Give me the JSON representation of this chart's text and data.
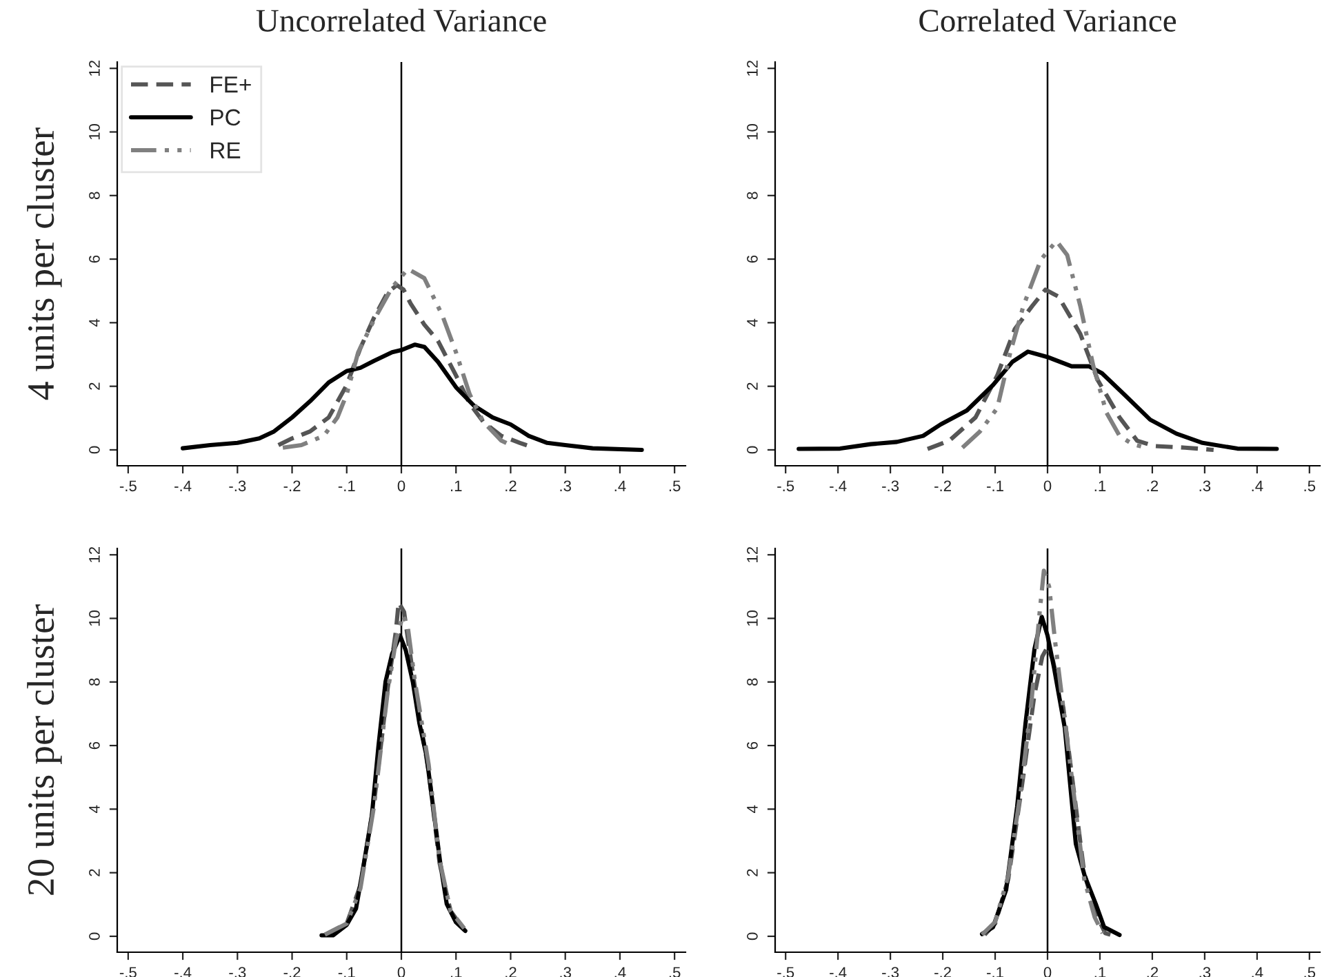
{
  "chart_data": [
    {
      "type": "line",
      "title": "Uncorrelated Variance",
      "ylabel": "4 units per cluster",
      "legend": "top left",
      "xlim": [
        -0.52,
        0.52
      ],
      "ylim": [
        -0.5,
        12.2
      ],
      "xticks": [
        {
          "value": -0.5,
          "label": "-.5"
        },
        {
          "value": -0.4,
          "label": "-.4"
        },
        {
          "value": -0.3,
          "label": "-.3"
        },
        {
          "value": -0.2,
          "label": "-.2"
        },
        {
          "value": -0.1,
          "label": "-.1"
        },
        0,
        {
          "value": 0.1,
          "label": ".1"
        },
        {
          "value": 0.2,
          "label": ".2"
        },
        {
          "value": 0.3,
          "label": ".3"
        },
        {
          "value": 0.4,
          "label": ".4"
        },
        {
          "value": 0.5,
          "label": ".5"
        }
      ],
      "yticks": [
        0,
        2,
        4,
        6,
        8,
        10,
        12
      ],
      "ref_lines": [
        {
          "axis": "x",
          "value": 0,
          "color": "#000000"
        }
      ],
      "series": [
        {
          "name": "FE+",
          "color": "#555555",
          "line_style": "dashed",
          "x": [
            -0.225,
            -0.2,
            -0.167,
            -0.133,
            -0.1,
            -0.075,
            -0.05,
            -0.025,
            -0.008,
            0.004,
            0.017,
            0.042,
            0.067,
            0.1,
            0.125,
            0.15,
            0.183,
            0.217,
            0.242
          ],
          "values": [
            0.15,
            0.36,
            0.58,
            1.02,
            2.04,
            3.2,
            4.16,
            4.96,
            5.18,
            5.04,
            4.6,
            3.94,
            3.43,
            2.34,
            1.46,
            0.88,
            0.44,
            0.22,
            0.07
          ]
        },
        {
          "name": "PC",
          "color": "#000000",
          "line_style": "solid",
          "x": [
            -0.4,
            -0.35,
            -0.3,
            -0.26,
            -0.233,
            -0.2,
            -0.167,
            -0.133,
            -0.1,
            -0.075,
            -0.05,
            -0.017,
            0,
            0.025,
            0.042,
            0.067,
            0.1,
            0.133,
            0.167,
            0.2,
            0.233,
            0.267,
            0.3,
            0.35,
            0.44
          ],
          "values": [
            0.05,
            0.15,
            0.22,
            0.36,
            0.58,
            1.02,
            1.53,
            2.12,
            2.48,
            2.58,
            2.8,
            3.07,
            3.14,
            3.31,
            3.24,
            2.77,
            1.97,
            1.39,
            1.02,
            0.8,
            0.44,
            0.22,
            0.15,
            0.05,
            0.0
          ]
        },
        {
          "name": "RE",
          "color": "#808080",
          "line_style": "dashdot",
          "x": [
            -0.217,
            -0.183,
            -0.142,
            -0.117,
            -0.1,
            -0.079,
            -0.05,
            -0.017,
            0.012,
            0.042,
            0.075,
            0.1,
            0.125,
            0.15,
            0.183,
            0.2
          ],
          "values": [
            0.07,
            0.15,
            0.44,
            1.02,
            1.75,
            3.07,
            4.09,
            5.11,
            5.69,
            5.4,
            4.23,
            3.07,
            1.75,
            0.88,
            0.29,
            0.15
          ]
        }
      ]
    },
    {
      "type": "line",
      "title": "Correlated Variance",
      "xlim": [
        -0.52,
        0.52
      ],
      "ylim": [
        -0.5,
        12.2
      ],
      "xticks": [
        {
          "value": -0.5,
          "label": "-.5"
        },
        {
          "value": -0.4,
          "label": "-.4"
        },
        {
          "value": -0.3,
          "label": "-.3"
        },
        {
          "value": -0.2,
          "label": "-.2"
        },
        {
          "value": -0.1,
          "label": "-.1"
        },
        0,
        {
          "value": 0.1,
          "label": ".1"
        },
        {
          "value": 0.2,
          "label": ".2"
        },
        {
          "value": 0.3,
          "label": ".3"
        },
        {
          "value": 0.4,
          "label": ".4"
        },
        {
          "value": 0.5,
          "label": ".5"
        }
      ],
      "yticks": [
        0,
        2,
        4,
        6,
        8,
        10,
        12
      ],
      "ref_lines": [
        {
          "axis": "x",
          "value": 0,
          "color": "#000000"
        }
      ],
      "series": [
        {
          "color": "#555555",
          "line_style": "dashed",
          "x": [
            -0.229,
            -0.1875,
            -0.1375,
            -0.096,
            -0.0625,
            -0.029,
            -0.004,
            0.021,
            0.0625,
            0.096,
            0.1375,
            0.171,
            0.204,
            0.2625,
            0.317
          ],
          "values": [
            0.03,
            0.29,
            1.02,
            2.34,
            3.8,
            4.53,
            5.04,
            4.82,
            3.65,
            2.19,
            1.02,
            0.29,
            0.12,
            0.07,
            0.0
          ]
        },
        {
          "color": "#000000",
          "line_style": "solid",
          "x": [
            -0.475,
            -0.396,
            -0.3375,
            -0.2875,
            -0.2375,
            -0.204,
            -0.154,
            -0.104,
            -0.067,
            -0.0375,
            0,
            0.046,
            0.079,
            0.104,
            0.146,
            0.196,
            0.246,
            0.296,
            0.3625,
            0.4375
          ],
          "values": [
            0.03,
            0.04,
            0.18,
            0.25,
            0.44,
            0.8,
            1.24,
            2.04,
            2.77,
            3.09,
            2.92,
            2.63,
            2.63,
            2.41,
            1.75,
            0.95,
            0.51,
            0.22,
            0.04,
            0.03
          ]
        },
        {
          "color": "#808080",
          "line_style": "dashdot",
          "x": [
            -0.1625,
            -0.129,
            -0.096,
            -0.071,
            -0.046,
            -0.0125,
            0.017,
            0.0375,
            0.0625,
            0.0875,
            0.1125,
            0.1375,
            0.1625,
            0.1875
          ],
          "values": [
            0.07,
            0.58,
            1.31,
            3.07,
            4.53,
            5.99,
            6.57,
            6.13,
            4.53,
            2.63,
            1.17,
            0.44,
            0.18,
            0.07
          ]
        }
      ]
    },
    {
      "type": "line",
      "ylabel": "20 units per cluster",
      "xlim": [
        -0.52,
        0.52
      ],
      "ylim": [
        -0.5,
        12.2
      ],
      "xticks": [
        {
          "value": -0.5,
          "label": "-.5"
        },
        {
          "value": -0.4,
          "label": "-.4"
        },
        {
          "value": -0.3,
          "label": "-.3"
        },
        {
          "value": -0.2,
          "label": "-.2"
        },
        {
          "value": -0.1,
          "label": "-.1"
        },
        0,
        {
          "value": 0.1,
          "label": ".1"
        },
        {
          "value": 0.2,
          "label": ".2"
        },
        {
          "value": 0.3,
          "label": ".3"
        },
        {
          "value": 0.4,
          "label": ".4"
        },
        {
          "value": 0.5,
          "label": ".5"
        }
      ],
      "yticks": [
        0,
        2,
        4,
        6,
        8,
        10,
        12
      ],
      "ref_lines": [
        {
          "axis": "x",
          "value": 0,
          "color": "#000000"
        }
      ],
      "series": [
        {
          "color": "#555555",
          "line_style": "dashed",
          "x": [
            -0.14,
            -0.1,
            -0.075,
            -0.05,
            -0.025,
            -0.01,
            -0.005,
            0.005,
            0.015,
            0.03,
            0.05,
            0.07,
            0.09,
            0.115
          ],
          "values": [
            0.05,
            0.4,
            1.6,
            4.2,
            7.8,
            9.6,
            10.5,
            10.2,
            9.0,
            7.2,
            5.2,
            2.3,
            0.8,
            0.2
          ]
        },
        {
          "color": "#000000",
          "line_style": "solid",
          "x": [
            -0.146,
            -0.125,
            -0.1,
            -0.083,
            -0.071,
            -0.054,
            -0.042,
            -0.029,
            -0.017,
            -0.0025,
            0.008,
            0.021,
            0.033,
            0.046,
            0.058,
            0.071,
            0.083,
            0.1,
            0.117
          ],
          "values": [
            0.03,
            0.03,
            0.36,
            0.87,
            2.04,
            3.79,
            5.97,
            8.0,
            8.88,
            9.46,
            9.0,
            8.0,
            6.7,
            5.68,
            4.08,
            2.33,
            1.02,
            0.44,
            0.17
          ]
        },
        {
          "color": "#808080",
          "line_style": "dashdot",
          "x": [
            -0.14,
            -0.1,
            -0.075,
            -0.05,
            -0.025,
            -0.01,
            0.003,
            0.012,
            0.025,
            0.05,
            0.07,
            0.09,
            0.115
          ],
          "values": [
            0.05,
            0.4,
            1.5,
            4.1,
            7.7,
            9.3,
            10.1,
            9.7,
            8.0,
            5.4,
            2.4,
            0.8,
            0.25
          ]
        }
      ]
    },
    {
      "type": "line",
      "xlim": [
        -0.52,
        0.52
      ],
      "ylim": [
        -0.5,
        12.2
      ],
      "xticks": [
        {
          "value": -0.5,
          "label": "-.5"
        },
        {
          "value": -0.4,
          "label": "-.4"
        },
        {
          "value": -0.3,
          "label": "-.3"
        },
        {
          "value": -0.2,
          "label": "-.2"
        },
        {
          "value": -0.1,
          "label": "-.1"
        },
        0,
        {
          "value": 0.1,
          "label": ".1"
        },
        {
          "value": 0.2,
          "label": ".2"
        },
        {
          "value": 0.3,
          "label": ".3"
        },
        {
          "value": 0.4,
          "label": ".4"
        },
        {
          "value": 0.5,
          "label": ".5"
        }
      ],
      "yticks": [
        0,
        2,
        4,
        6,
        8,
        10,
        12
      ],
      "ref_lines": [
        {
          "axis": "x",
          "value": 0,
          "color": "#000000"
        }
      ],
      "series": [
        {
          "color": "#555555",
          "line_style": "dashed",
          "x": [
            -0.12,
            -0.1,
            -0.075,
            -0.05,
            -0.025,
            -0.01,
            0.0,
            0.01,
            0.03,
            0.05,
            0.07,
            0.09,
            0.11,
            0.12
          ],
          "values": [
            0.05,
            0.4,
            1.8,
            4.6,
            7.6,
            8.8,
            9.1,
            8.7,
            7.2,
            4.6,
            2.0,
            0.8,
            0.1,
            0.05
          ]
        },
        {
          "color": "#000000",
          "line_style": "solid",
          "x": [
            -0.125,
            -0.104,
            -0.079,
            -0.058,
            -0.042,
            -0.025,
            -0.011,
            0,
            0.0125,
            0.033,
            0.054,
            0.071,
            0.092,
            0.108,
            0.1375
          ],
          "values": [
            0.07,
            0.29,
            1.46,
            4.08,
            6.7,
            9.03,
            10.05,
            9.46,
            8.44,
            6.55,
            2.91,
            1.9,
            1.02,
            0.29,
            0.04
          ]
        },
        {
          "color": "#808080",
          "line_style": "dashdot",
          "x": [
            -0.125,
            -0.1,
            -0.075,
            -0.05,
            -0.03,
            -0.015,
            -0.007,
            0.003,
            0.015,
            0.03,
            0.05,
            0.07,
            0.09,
            0.105
          ],
          "values": [
            0.05,
            0.45,
            1.9,
            4.7,
            7.5,
            10.2,
            11.5,
            11.0,
            9.2,
            7.2,
            4.5,
            1.8,
            0.6,
            0.1
          ]
        }
      ]
    }
  ]
}
